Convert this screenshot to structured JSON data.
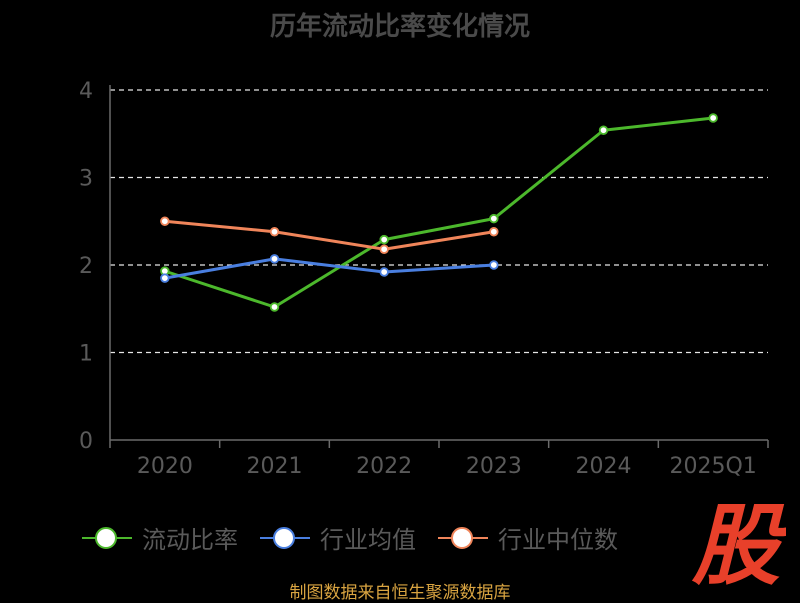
{
  "title": "历年流动比率变化情况",
  "source": "制图数据来自恒生聚源数据库",
  "logo": "股",
  "colors": {
    "current_ratio": "#4cb82c",
    "industry_avg": "#4a7fe0",
    "industry_median": "#f0855a",
    "axis": "#6b6b6b",
    "grid": "#e6e6e6",
    "logo": "#e8402a"
  },
  "chart_data": {
    "type": "line",
    "title": "历年流动比率变化情况",
    "categories": [
      "2020",
      "2021",
      "2022",
      "2023",
      "2024",
      "2025Q1"
    ],
    "ylim": [
      0,
      4
    ],
    "yticks": [
      0,
      1,
      2,
      3,
      4
    ],
    "grid": true,
    "legend_position": "bottom",
    "series": [
      {
        "name": "流动比率",
        "color_key": "current_ratio",
        "values": [
          1.93,
          1.52,
          2.29,
          2.53,
          3.54,
          3.68
        ]
      },
      {
        "name": "行业均值",
        "color_key": "industry_avg",
        "values": [
          1.85,
          2.07,
          1.92,
          2.0,
          null,
          null
        ]
      },
      {
        "name": "行业中位数",
        "color_key": "industry_median",
        "values": [
          2.5,
          2.38,
          2.18,
          2.38,
          null,
          null
        ]
      }
    ]
  }
}
